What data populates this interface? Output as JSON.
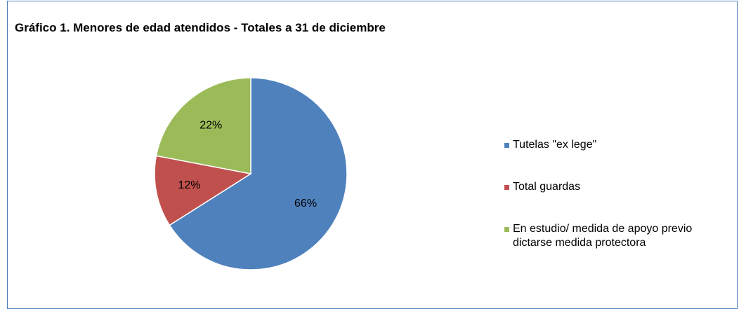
{
  "chart_data": {
    "type": "pie",
    "title": "Gráfico 1. Menores de edad atendidos - Totales a 31 de diciembre",
    "categories": [
      "Tutelas \"ex lege\"",
      "Total guardas",
      "En estudio/ medida de apoyo previo dictarse medida protectora"
    ],
    "values": [
      66,
      12,
      22
    ],
    "value_labels": [
      "66%",
      "12%",
      "22%"
    ],
    "colors": [
      "#4f81bd",
      "#c0504d",
      "#9bbb59"
    ],
    "legend": "right"
  }
}
